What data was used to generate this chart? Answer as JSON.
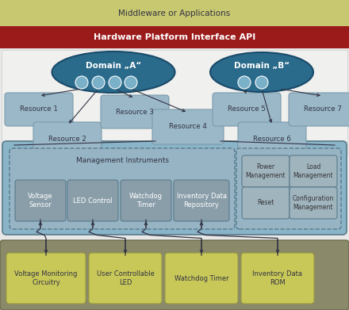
{
  "middleware_text": "Middleware or Applications",
  "api_text": "Hardware Platform Interface API",
  "domain_a_text": "Domain „A“",
  "domain_b_text": "Domain „B“",
  "colors": {
    "middleware_bg": "#c8c870",
    "api_bg": "#9b1a1a",
    "api_text": "#ffffff",
    "domain_ellipse": "#2a6a8a",
    "domain_ellipse_edge": "#1a4a6a",
    "circle_fill": "#7ab0c8",
    "resource_box": "#9ab8c8",
    "resource_box_edge": "#7a9aaa",
    "resource4_outer_fill": "#8ab4c8",
    "resource4_outer_edge": "#5a7a8a",
    "mgmt_fill": "#96b4c4",
    "mgmt_edge": "#5a7a8a",
    "instrument_fill": "#8a9eaa",
    "instrument_edge": "#5a7a8a",
    "instrument_text": "#ffffff",
    "cap_fill": "#a0b4be",
    "cap_edge": "#5a7a8a",
    "cap_text": "#333333",
    "bottom_container_fill": "#8a8a6a",
    "bottom_container_edge": "#6a6a4a",
    "bottom_box_fill": "#c8c858",
    "bottom_box_edge": "#9a9a40",
    "text_dark": "#333344",
    "text_mid": "#445566",
    "arrow_color": "#333344",
    "white_bg": "#f0f0f0"
  }
}
